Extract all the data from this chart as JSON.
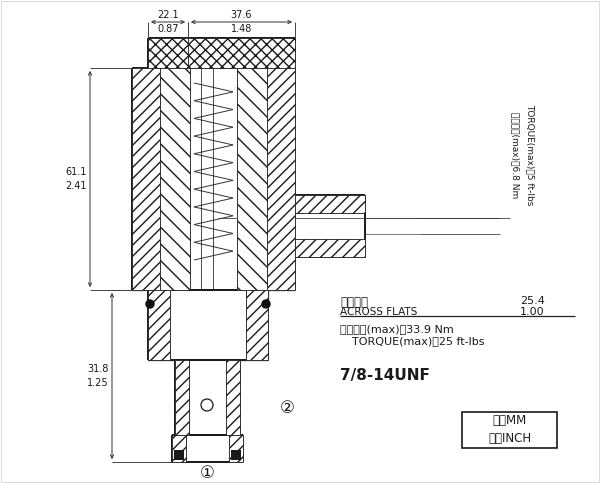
{
  "bg_color": "#ffffff",
  "line_color": "#1a1a1a",
  "fig_width": 6.0,
  "fig_height": 4.83,
  "annotations": {
    "dim_top_left_mm": "22.1",
    "dim_top_left_inch": "0.87",
    "dim_top_right_mm": "37.6",
    "dim_top_right_inch": "1.48",
    "dim_left_upper_mm": "61.1",
    "dim_left_upper_inch": "2.41",
    "dim_left_lower_mm": "31.8",
    "dim_left_lower_inch": "1.25",
    "torque_rot_line1": "安装扔矩(max)：6.8 Nm",
    "torque_rot_line2": "TORQUE(max)：5 ft-lbs",
    "across_flats_cn": "對邂寬度",
    "across_flats_en": "ACROSS FLATS",
    "across_flats_mm": "25.4",
    "across_flats_inch": "1.00",
    "torque_lower_line1": "安装扔矩(max)：33.9 Nm",
    "torque_lower_line2": "TORQUE(max)：25 ft-lbs",
    "thread": "7/8-14UNF",
    "unit_mm": "毫米MM",
    "unit_inch": "英寸INCH",
    "label1": "①",
    "label2": "②"
  }
}
